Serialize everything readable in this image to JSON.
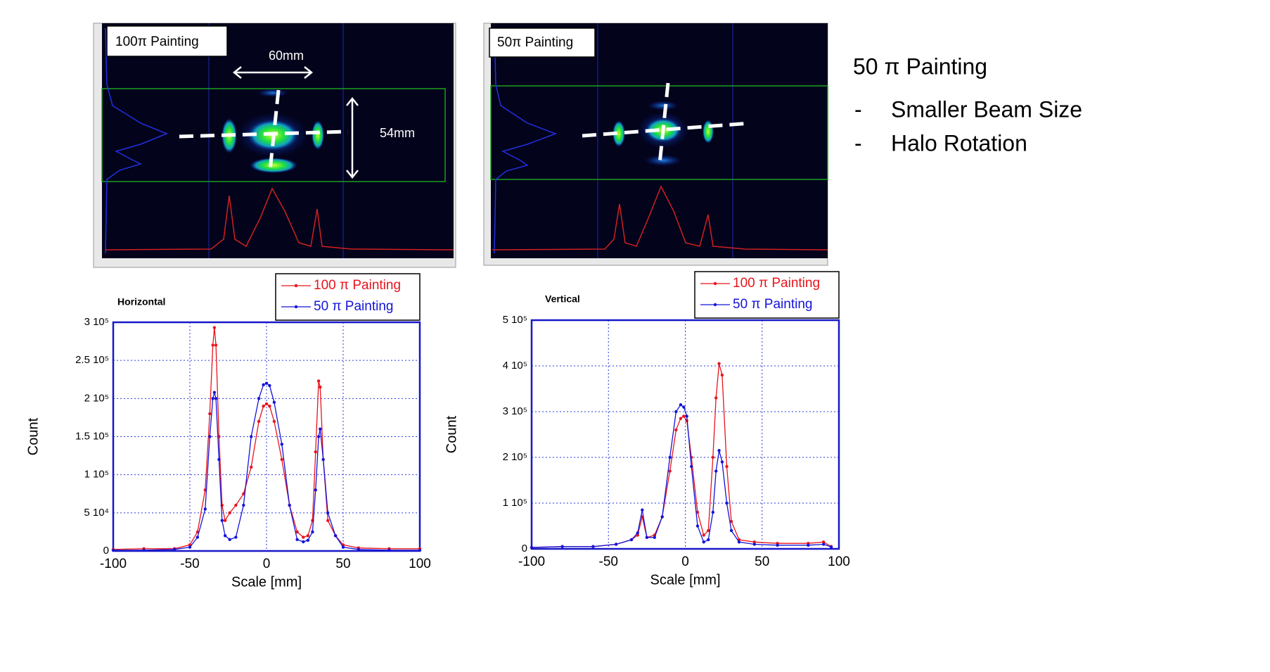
{
  "images": [
    {
      "label": "100π Painting",
      "annotations": [
        "60mm",
        "54mm"
      ]
    },
    {
      "label": "50π Painting"
    }
  ],
  "notes": {
    "heading": "50 π Painting",
    "bullets": [
      {
        "marker": "-",
        "text": "Smaller Beam Size"
      },
      {
        "marker": "-",
        "text": "Halo Rotation"
      }
    ]
  },
  "chart_data": [
    {
      "type": "line",
      "title": "Horizontal",
      "x_label": "Scale [mm]",
      "y_label": "Count",
      "x": [
        -100,
        -80,
        -60,
        -50,
        -45,
        -40,
        -37,
        -35,
        -34,
        -33,
        -31,
        -29,
        -27,
        -24,
        -20,
        -15,
        -10,
        -5,
        -2,
        0,
        2,
        5,
        10,
        15,
        20,
        24,
        27,
        30,
        32,
        34,
        35,
        37,
        40,
        45,
        50,
        60,
        80,
        100
      ],
      "series": [
        {
          "name": "100 π Painting",
          "color": "#e8141c",
          "values": [
            2000,
            3000,
            3000,
            8000,
            25000,
            80000,
            180000,
            270000,
            293000,
            270000,
            150000,
            60000,
            40000,
            50000,
            60000,
            75000,
            110000,
            170000,
            190000,
            193000,
            190000,
            170000,
            120000,
            60000,
            25000,
            18000,
            20000,
            40000,
            130000,
            223000,
            215000,
            120000,
            40000,
            20000,
            8000,
            4000,
            3000,
            3000
          ]
        },
        {
          "name": "50 π Painting",
          "color": "#1414d8",
          "values": [
            1000,
            1000,
            2000,
            5000,
            18000,
            55000,
            150000,
            200000,
            208000,
            200000,
            120000,
            40000,
            20000,
            15000,
            18000,
            60000,
            150000,
            200000,
            218000,
            220000,
            217000,
            195000,
            140000,
            60000,
            15000,
            12000,
            14000,
            25000,
            80000,
            150000,
            160000,
            120000,
            50000,
            20000,
            5000,
            2000,
            1000,
            1000
          ]
        }
      ],
      "xlim": [
        -100,
        100
      ],
      "xticks": [
        -100,
        -50,
        0,
        50,
        100
      ],
      "ylim": [
        0,
        300000
      ],
      "yticks": [
        0,
        {
          "value": 50000,
          "label": "5 10⁴"
        },
        {
          "value": 100000,
          "label": "1 10⁵"
        },
        {
          "value": 150000,
          "label": "1.5 10⁵"
        },
        {
          "value": 200000,
          "label": "2 10⁵"
        },
        {
          "value": 250000,
          "label": "2.5 10⁵"
        },
        {
          "value": 300000,
          "label": "3 10⁵"
        }
      ],
      "grid": true,
      "legend": "top-right"
    },
    {
      "type": "line",
      "title": "Vertical",
      "x_label": "Scale [mm]",
      "y_label": "Count",
      "x": [
        -100,
        -80,
        -60,
        -45,
        -35,
        -31,
        -28,
        -25,
        -20,
        -15,
        -10,
        -6,
        -3,
        -1,
        1,
        4,
        8,
        12,
        15,
        18,
        20,
        22,
        24,
        27,
        30,
        35,
        45,
        60,
        80,
        90,
        95
      ],
      "series": [
        {
          "name": "100 π Painting",
          "color": "#e8141c",
          "values": [
            3000,
            5000,
            5000,
            10000,
            20000,
            30000,
            70000,
            25000,
            30000,
            70000,
            170000,
            260000,
            285000,
            290000,
            280000,
            200000,
            80000,
            30000,
            40000,
            200000,
            330000,
            405000,
            380000,
            180000,
            60000,
            20000,
            15000,
            12000,
            12000,
            15000,
            5000
          ]
        },
        {
          "name": "50 π Painting",
          "color": "#1414d8",
          "values": [
            3000,
            5000,
            5000,
            10000,
            20000,
            35000,
            85000,
            25000,
            25000,
            70000,
            200000,
            300000,
            315000,
            310000,
            290000,
            180000,
            50000,
            15000,
            20000,
            80000,
            170000,
            215000,
            190000,
            100000,
            40000,
            15000,
            10000,
            8000,
            8000,
            10000,
            4000
          ]
        }
      ],
      "xlim": [
        -100,
        100
      ],
      "xticks": [
        -100,
        -50,
        0,
        50,
        100
      ],
      "ylim": [
        0,
        500000
      ],
      "yticks": [
        0,
        {
          "value": 100000,
          "label": "1 10⁵"
        },
        {
          "value": 200000,
          "label": "2 10⁵"
        },
        {
          "value": 300000,
          "label": "3 10⁵"
        },
        {
          "value": 400000,
          "label": "4 10⁵"
        },
        {
          "value": 500000,
          "label": "5 10⁵"
        }
      ],
      "grid": true,
      "legend": "top-right"
    }
  ]
}
